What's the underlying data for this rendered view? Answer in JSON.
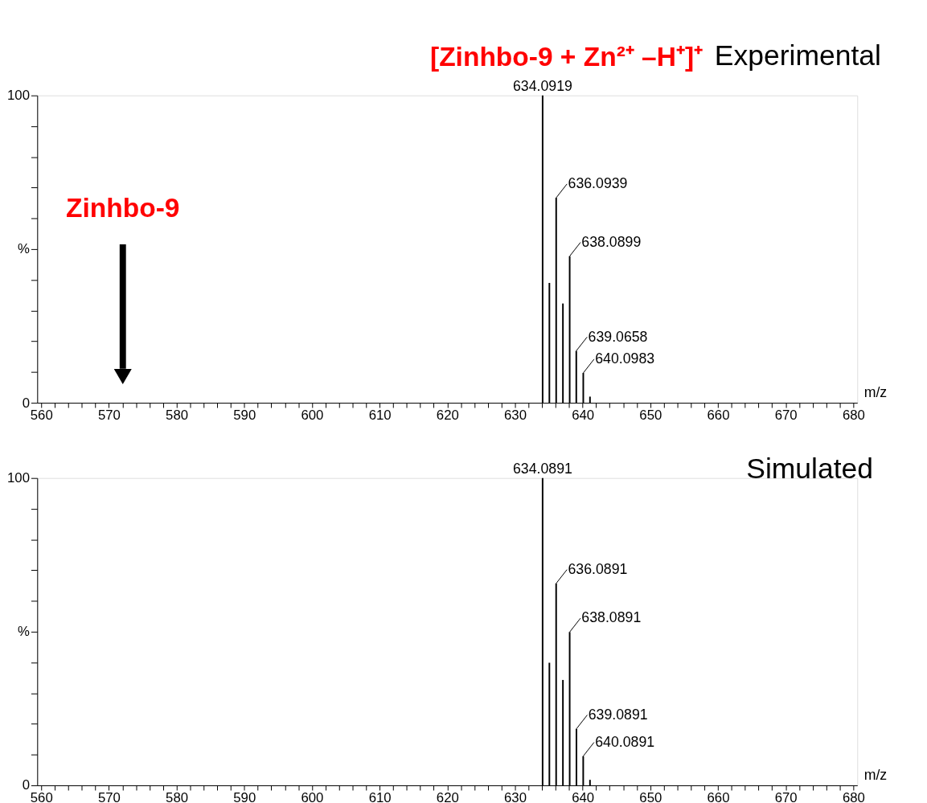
{
  "chart_data": [
    {
      "type": "bar",
      "title": "[Zinhbo-9 + Zn²⁺ –H⁺]⁺",
      "subtitle": "Experimental",
      "xlabel": "m/z",
      "xlim": [
        560,
        680
      ],
      "xticks": [
        560,
        {
          "value": 562,
          "label": null
        },
        {
          "value": 564,
          "label": null
        },
        {
          "value": 566,
          "label": null
        },
        {
          "value": 568,
          "label": null
        },
        570,
        {
          "value": 572,
          "label": null
        },
        {
          "value": 574,
          "label": null
        },
        {
          "value": 576,
          "label": null
        },
        {
          "value": 578,
          "label": null
        },
        580,
        {
          "value": 582,
          "label": null
        },
        {
          "value": 584,
          "label": null
        },
        {
          "value": 586,
          "label": null
        },
        {
          "value": 588,
          "label": null
        },
        590,
        {
          "value": 592,
          "label": null
        },
        {
          "value": 594,
          "label": null
        },
        {
          "value": 596,
          "label": null
        },
        {
          "value": 598,
          "label": null
        },
        600,
        {
          "value": 602,
          "label": null
        },
        {
          "value": 604,
          "label": null
        },
        {
          "value": 606,
          "label": null
        },
        {
          "value": 608,
          "label": null
        },
        610,
        {
          "value": 612,
          "label": null
        },
        {
          "value": 614,
          "label": null
        },
        {
          "value": 616,
          "label": null
        },
        {
          "value": 618,
          "label": null
        },
        620,
        {
          "value": 622,
          "label": null
        },
        {
          "value": 624,
          "label": null
        },
        {
          "value": 626,
          "label": null
        },
        {
          "value": 628,
          "label": null
        },
        630,
        {
          "value": 632,
          "label": null
        },
        {
          "value": 634,
          "label": null
        },
        {
          "value": 636,
          "label": null
        },
        {
          "value": 638,
          "label": null
        },
        640,
        {
          "value": 642,
          "label": null
        },
        {
          "value": 644,
          "label": null
        },
        {
          "value": 646,
          "label": null
        },
        {
          "value": 648,
          "label": null
        },
        650,
        {
          "value": 652,
          "label": null
        },
        {
          "value": 654,
          "label": null
        },
        {
          "value": 656,
          "label": null
        },
        {
          "value": 658,
          "label": null
        },
        660,
        {
          "value": 662,
          "label": null
        },
        {
          "value": 664,
          "label": null
        },
        {
          "value": 666,
          "label": null
        },
        {
          "value": 668,
          "label": null
        },
        670,
        {
          "value": 672,
          "label": null
        },
        {
          "value": 674,
          "label": null
        },
        {
          "value": 676,
          "label": null
        },
        {
          "value": 678,
          "label": null
        },
        680
      ],
      "ylim": [
        0,
        100
      ],
      "yticks": [
        0,
        {
          "value": 10,
          "label": null
        },
        {
          "value": 20,
          "label": null
        },
        {
          "value": 30,
          "label": null
        },
        {
          "value": 40,
          "label": null
        },
        {
          "value": 50,
          "label": "%"
        },
        {
          "value": 60,
          "label": null
        },
        {
          "value": 70,
          "label": null
        },
        {
          "value": 80,
          "label": null
        },
        {
          "value": 90,
          "label": null
        },
        100
      ],
      "grid": false,
      "legend": false,
      "series": [
        {
          "color": "#000000",
          "x": [
            634.0919,
            635.09,
            636.0939,
            637.09,
            638.0899,
            639.0658,
            640.0983,
            641.09
          ],
          "values": [
            100,
            39,
            66.7,
            32.3,
            47.7,
            16.9,
            9.7,
            2
          ]
        }
      ],
      "annotations": [
        {
          "text": "634.0919",
          "x": 634.0919,
          "y": 100
        },
        {
          "text": "636.0939",
          "x": 636.0939,
          "y": 66.7
        },
        {
          "text": "638.0899",
          "x": 638.0899,
          "y": 47.7
        },
        {
          "text": "639.0658",
          "x": 639.0658,
          "y": 16.9
        },
        {
          "text": "640.0983",
          "x": 640.0983,
          "y": 9.7
        },
        "Zinhbo-9"
      ]
    },
    {
      "type": "bar",
      "title": "Simulated",
      "xlabel": "m/z",
      "xlim": [
        560,
        680
      ],
      "xticks": [
        560,
        {
          "value": 562,
          "label": null
        },
        {
          "value": 564,
          "label": null
        },
        {
          "value": 566,
          "label": null
        },
        {
          "value": 568,
          "label": null
        },
        570,
        {
          "value": 572,
          "label": null
        },
        {
          "value": 574,
          "label": null
        },
        {
          "value": 576,
          "label": null
        },
        {
          "value": 578,
          "label": null
        },
        580,
        {
          "value": 582,
          "label": null
        },
        {
          "value": 584,
          "label": null
        },
        {
          "value": 586,
          "label": null
        },
        {
          "value": 588,
          "label": null
        },
        590,
        {
          "value": 592,
          "label": null
        },
        {
          "value": 594,
          "label": null
        },
        {
          "value": 596,
          "label": null
        },
        {
          "value": 598,
          "label": null
        },
        600,
        {
          "value": 602,
          "label": null
        },
        {
          "value": 604,
          "label": null
        },
        {
          "value": 606,
          "label": null
        },
        {
          "value": 608,
          "label": null
        },
        610,
        {
          "value": 612,
          "label": null
        },
        {
          "value": 614,
          "label": null
        },
        {
          "value": 616,
          "label": null
        },
        {
          "value": 618,
          "label": null
        },
        620,
        {
          "value": 622,
          "label": null
        },
        {
          "value": 624,
          "label": null
        },
        {
          "value": 626,
          "label": null
        },
        {
          "value": 628,
          "label": null
        },
        630,
        {
          "value": 632,
          "label": null
        },
        {
          "value": 634,
          "label": null
        },
        {
          "value": 636,
          "label": null
        },
        {
          "value": 638,
          "label": null
        },
        640,
        {
          "value": 642,
          "label": null
        },
        {
          "value": 644,
          "label": null
        },
        {
          "value": 646,
          "label": null
        },
        {
          "value": 648,
          "label": null
        },
        650,
        {
          "value": 652,
          "label": null
        },
        {
          "value": 654,
          "label": null
        },
        {
          "value": 656,
          "label": null
        },
        {
          "value": 658,
          "label": null
        },
        660,
        {
          "value": 662,
          "label": null
        },
        {
          "value": 664,
          "label": null
        },
        {
          "value": 666,
          "label": null
        },
        {
          "value": 668,
          "label": null
        },
        670,
        {
          "value": 672,
          "label": null
        },
        {
          "value": 674,
          "label": null
        },
        {
          "value": 676,
          "label": null
        },
        {
          "value": 678,
          "label": null
        },
        680
      ],
      "ylim": [
        0,
        100
      ],
      "yticks": [
        0,
        {
          "value": 10,
          "label": null
        },
        {
          "value": 20,
          "label": null
        },
        {
          "value": 30,
          "label": null
        },
        {
          "value": 40,
          "label": null
        },
        {
          "value": 50,
          "label": "%"
        },
        {
          "value": 60,
          "label": null
        },
        {
          "value": 70,
          "label": null
        },
        {
          "value": 80,
          "label": null
        },
        {
          "value": 90,
          "label": null
        },
        100
      ],
      "grid": false,
      "legend": false,
      "series": [
        {
          "color": "#000000",
          "x": [
            634.0891,
            635.09,
            636.0891,
            637.09,
            638.0891,
            639.0891,
            640.0891,
            641.09
          ],
          "values": [
            100,
            39.9,
            65.7,
            34.3,
            49.9,
            18.4,
            9.5,
            1.8
          ]
        }
      ],
      "annotations": [
        {
          "text": "634.0891",
          "x": 634.0891,
          "y": 100
        },
        {
          "text": "636.0891",
          "x": 636.0891,
          "y": 65.7
        },
        {
          "text": "638.0891",
          "x": 638.0891,
          "y": 49.9
        },
        {
          "text": "639.0891",
          "x": 639.0891,
          "y": 18.4
        },
        {
          "text": "640.0891",
          "x": 640.0891,
          "y": 9.5
        }
      ]
    }
  ]
}
